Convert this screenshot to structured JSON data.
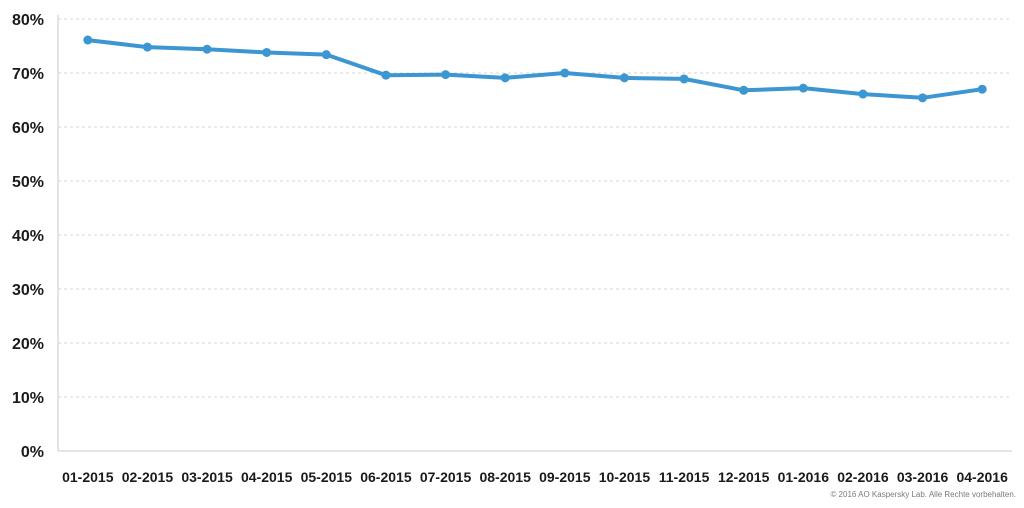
{
  "chart_data": {
    "type": "line",
    "title": "",
    "xlabel": "",
    "ylabel": "",
    "categories": [
      "01-2015",
      "02-2015",
      "03-2015",
      "04-2015",
      "05-2015",
      "06-2015",
      "07-2015",
      "08-2015",
      "09-2015",
      "10-2015",
      "11-2015",
      "12-2015",
      "01-2016",
      "02-2016",
      "03-2016",
      "04-2016"
    ],
    "series": [
      {
        "values": [
          76.1,
          74.8,
          74.4,
          73.8,
          73.4,
          69.6,
          69.7,
          69.1,
          70.0,
          69.1,
          68.9,
          66.8,
          67.2,
          66.1,
          65.4,
          67.0
        ]
      }
    ],
    "ylim": [
      0,
      80
    ],
    "yticks": [
      "0%",
      "10%",
      "20%",
      "30%",
      "40%",
      "50%",
      "60%",
      "70%",
      "80%"
    ],
    "yunit": "%",
    "grid": true,
    "legend": "none",
    "line_color": "#3c96d2"
  },
  "copyright": "© 2016 AO Kaspersky Lab. Alle Rechte vorbehalten."
}
